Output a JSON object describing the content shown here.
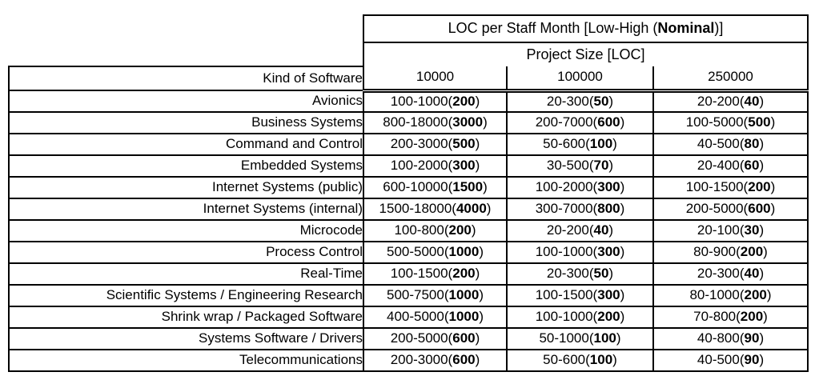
{
  "table": {
    "title_prefix": "LOC per Staff Month [Low-High (",
    "title_bold": "Nominal",
    "title_suffix": ")]",
    "project_size_label": "Project Size [LOC]",
    "kind_header": "Kind of Software",
    "size_columns": [
      "10000",
      "100000",
      "250000"
    ],
    "rows": [
      {
        "kind": "Avionics",
        "cells": [
          {
            "range": "100-1000",
            "nominal": "200"
          },
          {
            "range": "20-300",
            "nominal": "50"
          },
          {
            "range": "20-200",
            "nominal": "40"
          }
        ]
      },
      {
        "kind": "Business Systems",
        "cells": [
          {
            "range": "800-18000",
            "nominal": "3000"
          },
          {
            "range": "200-7000",
            "nominal": "600"
          },
          {
            "range": "100-5000",
            "nominal": "500"
          }
        ]
      },
      {
        "kind": "Command and Control",
        "cells": [
          {
            "range": "200-3000",
            "nominal": "500"
          },
          {
            "range": "50-600",
            "nominal": "100"
          },
          {
            "range": "40-500",
            "nominal": "80"
          }
        ]
      },
      {
        "kind": "Embedded Systems",
        "cells": [
          {
            "range": "100-2000",
            "nominal": "300"
          },
          {
            "range": "30-500",
            "nominal": "70"
          },
          {
            "range": "20-400",
            "nominal": "60"
          }
        ]
      },
      {
        "kind": "Internet Systems (public)",
        "cells": [
          {
            "range": "600-10000",
            "nominal": "1500"
          },
          {
            "range": "100-2000",
            "nominal": "300"
          },
          {
            "range": "100-1500",
            "nominal": "200"
          }
        ]
      },
      {
        "kind": "Internet Systems (internal)",
        "cells": [
          {
            "range": "1500-18000",
            "nominal": "4000"
          },
          {
            "range": "300-7000",
            "nominal": "800"
          },
          {
            "range": "200-5000",
            "nominal": "600"
          }
        ]
      },
      {
        "kind": "Microcode",
        "cells": [
          {
            "range": "100-800",
            "nominal": "200"
          },
          {
            "range": "20-200",
            "nominal": "40"
          },
          {
            "range": "20-100",
            "nominal": "30"
          }
        ]
      },
      {
        "kind": "Process Control",
        "cells": [
          {
            "range": "500-5000",
            "nominal": "1000"
          },
          {
            "range": "100-1000",
            "nominal": "300"
          },
          {
            "range": "80-900",
            "nominal": "200"
          }
        ]
      },
      {
        "kind": "Real-Time",
        "cells": [
          {
            "range": "100-1500",
            "nominal": "200"
          },
          {
            "range": "20-300",
            "nominal": "50"
          },
          {
            "range": "20-300",
            "nominal": "40"
          }
        ]
      },
      {
        "kind": "Scientific Systems / Engineering Research",
        "cells": [
          {
            "range": "500-7500",
            "nominal": "1000"
          },
          {
            "range": "100-1500",
            "nominal": "300"
          },
          {
            "range": "80-1000",
            "nominal": "200"
          }
        ]
      },
      {
        "kind": "Shrink wrap / Packaged Software",
        "cells": [
          {
            "range": "400-5000",
            "nominal": "1000"
          },
          {
            "range": "100-1000",
            "nominal": "200"
          },
          {
            "range": "70-800",
            "nominal": "200"
          }
        ]
      },
      {
        "kind": "Systems Software / Drivers",
        "cells": [
          {
            "range": "200-5000",
            "nominal": "600"
          },
          {
            "range": "50-1000",
            "nominal": "100"
          },
          {
            "range": "40-800",
            "nominal": "90"
          }
        ]
      },
      {
        "kind": "Telecommunications",
        "cells": [
          {
            "range": "200-3000",
            "nominal": "600"
          },
          {
            "range": "50-600",
            "nominal": "100"
          },
          {
            "range": "40-500",
            "nominal": "90"
          }
        ]
      }
    ]
  },
  "colors": {
    "border": "#000000",
    "background": "#ffffff",
    "text": "#000000"
  }
}
